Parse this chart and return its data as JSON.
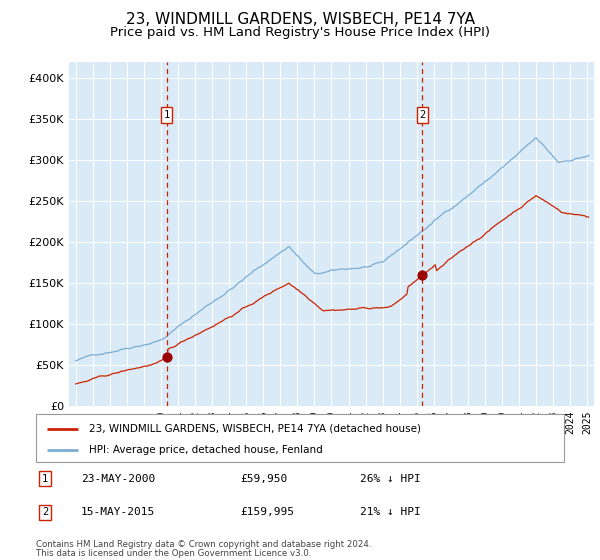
{
  "title": "23, WINDMILL GARDENS, WISBECH, PE14 7YA",
  "subtitle": "Price paid vs. HM Land Registry's House Price Index (HPI)",
  "legend_line1": "23, WINDMILL GARDENS, WISBECH, PE14 7YA (detached house)",
  "legend_line2": "HPI: Average price, detached house, Fenland",
  "marker1_date": "23-MAY-2000",
  "marker1_price": 59950,
  "marker1_text": "26% ↓ HPI",
  "marker2_date": "15-MAY-2015",
  "marker2_price": 159995,
  "marker2_text": "21% ↓ HPI",
  "footnote1": "Contains HM Land Registry data © Crown copyright and database right 2024.",
  "footnote2": "This data is licensed under the Open Government Licence v3.0.",
  "hpi_color": "#7aadd4",
  "price_color": "#cc2200",
  "marker_color": "#990000",
  "dashed_color": "#cc2200",
  "bg_color": "#daeaf7",
  "fig_color": "#ffffff",
  "ylim": [
    0,
    420000
  ],
  "yticks": [
    0,
    50000,
    100000,
    150000,
    200000,
    250000,
    300000,
    350000,
    400000
  ],
  "title_fontsize": 11,
  "subtitle_fontsize": 9.5
}
